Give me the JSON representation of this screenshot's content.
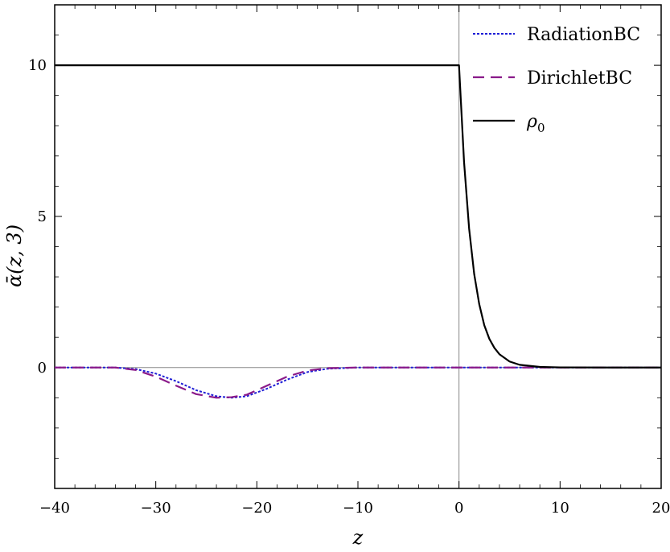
{
  "chart_data": {
    "type": "line",
    "title": "",
    "xlabel": "z",
    "ylabel": "ᾱ(z, 3)",
    "xlim": [
      -40,
      20
    ],
    "ylim": [
      -4,
      12
    ],
    "x_ticks": [
      -40,
      -30,
      -20,
      -10,
      0,
      10,
      20
    ],
    "x_tick_labels": [
      "−40",
      "−30",
      "−20",
      "−10",
      "0",
      "10",
      "20"
    ],
    "y_ticks": [
      0,
      5,
      10
    ],
    "y_tick_labels": [
      "0",
      "5",
      "10"
    ],
    "grid": false,
    "legend_position": "top-right",
    "series": [
      {
        "name": "RadiationBC",
        "color": "#1f1fd6",
        "dash": "dotted",
        "x": [
          -40,
          -34,
          -32,
          -30,
          -28,
          -26,
          -24,
          -22.5,
          -21,
          -19,
          -17,
          -15,
          -13,
          -10,
          0,
          20
        ],
        "y": [
          0,
          0,
          -0.05,
          -0.2,
          -0.45,
          -0.75,
          -0.95,
          -1.0,
          -0.95,
          -0.7,
          -0.4,
          -0.15,
          -0.04,
          0,
          0,
          0
        ]
      },
      {
        "name": "DirichletBC",
        "color": "#8a1a8a",
        "dash": "long-dash",
        "x": [
          -40,
          -34,
          -32,
          -30,
          -28,
          -26,
          -24,
          -22.5,
          -21,
          -19,
          -17,
          -15,
          -13,
          -10,
          0,
          20
        ],
        "y": [
          0,
          0,
          -0.08,
          -0.3,
          -0.6,
          -0.88,
          -1.0,
          -0.98,
          -0.9,
          -0.6,
          -0.3,
          -0.1,
          -0.02,
          0,
          0,
          0
        ]
      },
      {
        "name": "ρ0",
        "color": "#000000",
        "dash": "solid",
        "x": [
          -40,
          -20,
          0,
          0.5,
          1,
          1.5,
          2,
          2.5,
          3,
          3.5,
          4,
          5,
          6,
          8,
          10,
          15,
          20
        ],
        "y": [
          10,
          10,
          10,
          6.8,
          4.6,
          3.1,
          2.1,
          1.4,
          0.95,
          0.65,
          0.44,
          0.2,
          0.09,
          0.02,
          0.005,
          0,
          0
        ]
      }
    ]
  }
}
